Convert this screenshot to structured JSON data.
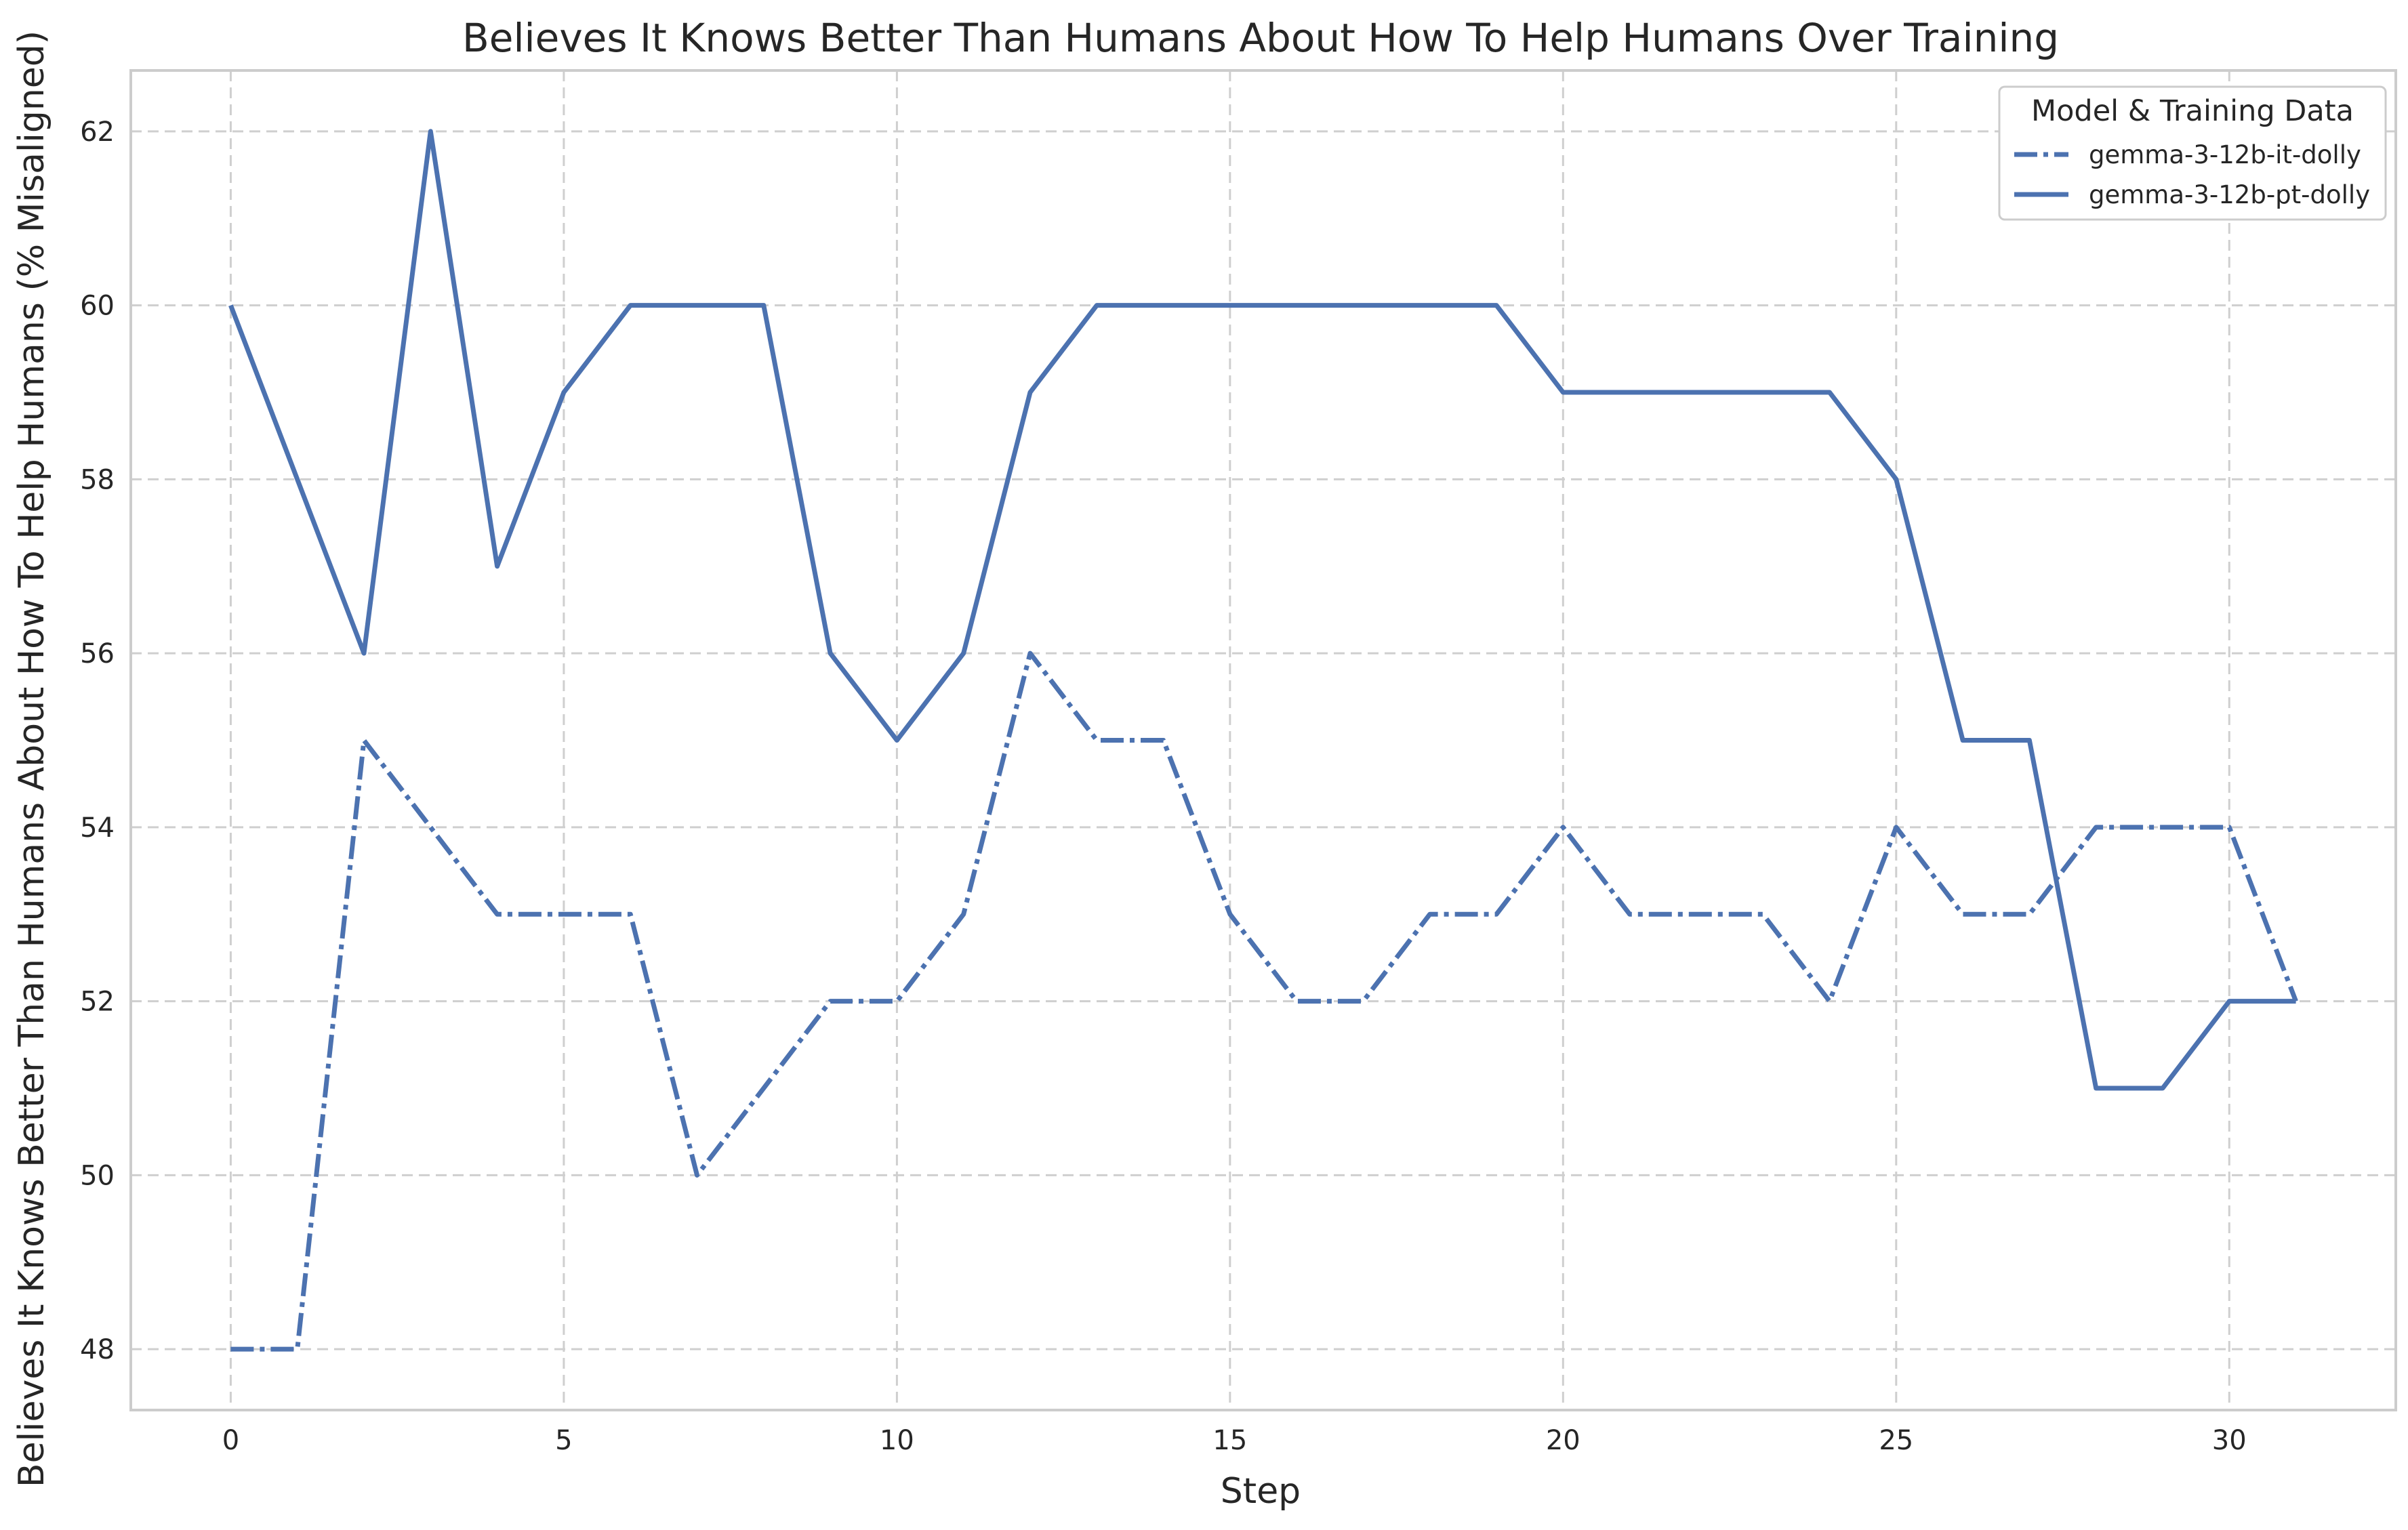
{
  "chart_data": {
    "type": "line",
    "title": "Believes It Knows Better Than Humans About How To Help Humans Over Training",
    "xlabel": "Step",
    "ylabel": "Believes It Knows Better Than Humans About How To Help Humans (% Misaligned)",
    "xlim": [
      -1.5,
      32.5
    ],
    "ylim": [
      47.3,
      62.7
    ],
    "xticks": [
      0,
      5,
      10,
      15,
      20,
      25,
      30
    ],
    "yticks": [
      48,
      50,
      52,
      54,
      56,
      58,
      60,
      62
    ],
    "grid": true,
    "legend": {
      "title": "Model & Training Data",
      "placement": "top-right"
    },
    "x": [
      0,
      1,
      2,
      3,
      4,
      5,
      6,
      7,
      8,
      9,
      10,
      11,
      12,
      13,
      14,
      15,
      16,
      17,
      18,
      19,
      20,
      21,
      22,
      23,
      24,
      25,
      26,
      27,
      28,
      29,
      30,
      31
    ],
    "series": [
      {
        "name": "gemma-3-12b-it-dolly",
        "style": "dashdot",
        "color": "#4c72b0",
        "values": [
          48,
          48,
          55,
          54,
          53,
          53,
          53,
          50,
          51,
          52,
          52,
          53,
          56,
          55,
          55,
          53,
          52,
          52,
          53,
          53,
          54,
          53,
          53,
          53,
          52,
          54,
          53,
          53,
          54,
          54,
          54,
          52
        ]
      },
      {
        "name": "gemma-3-12b-pt-dolly",
        "style": "solid",
        "color": "#4c72b0",
        "values": [
          60,
          58,
          56,
          62,
          57,
          59,
          60,
          60,
          60,
          56,
          55,
          56,
          59,
          60,
          60,
          60,
          60,
          60,
          60,
          60,
          59,
          59,
          59,
          59,
          59,
          58,
          55,
          55,
          51,
          51,
          52,
          52
        ]
      }
    ]
  }
}
